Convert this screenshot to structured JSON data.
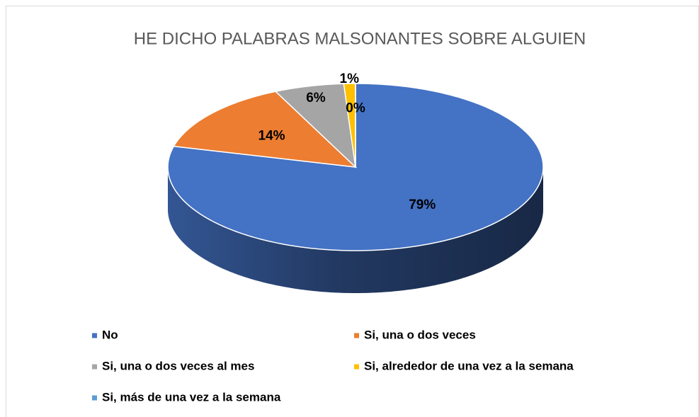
{
  "chart_data": {
    "type": "pie",
    "title": "HE DICHO PALABRAS MALSONANTES SOBRE ALGUIEN",
    "categories": [
      "No",
      "Si, una o dos veces",
      "Si, una o dos veces al mes",
      "Si, alrededor de una vez a la semana",
      "Si, más de una vez a la semana"
    ],
    "values": [
      79,
      14,
      6,
      1,
      0
    ],
    "value_labels": [
      "79%",
      "14%",
      "6%",
      "1%",
      "0%"
    ],
    "colors": [
      "#4472c4",
      "#ed7d31",
      "#a5a5a5",
      "#ffc000",
      "#5b9bd5"
    ],
    "legend": "bottom"
  }
}
